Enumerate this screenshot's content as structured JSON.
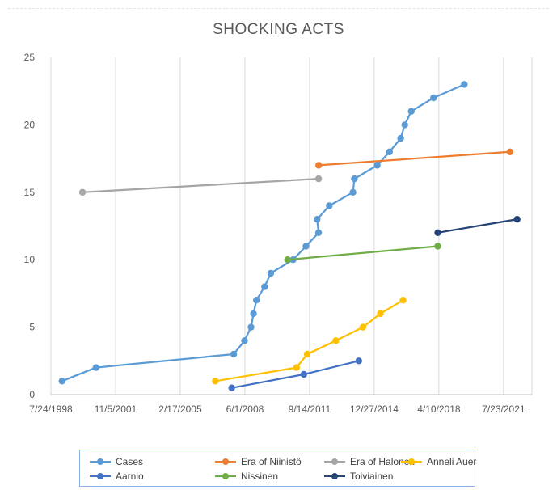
{
  "chart_data": {
    "type": "line",
    "title": "SHOCKING ACTS",
    "xlabel": "",
    "ylabel": "",
    "x_axis_type": "date",
    "xlim": [
      "1998-07-24",
      "2023-01-01"
    ],
    "ylim": [
      0,
      25
    ],
    "y_ticks": [
      0,
      5,
      10,
      15,
      20,
      25
    ],
    "x_ticks": [
      "1998-07-24",
      "2001-11-05",
      "2005-02-17",
      "2008-06-01",
      "2011-09-14",
      "2014-12-27",
      "2018-04-10",
      "2021-07-23"
    ],
    "x_tick_labels": [
      "7/24/1998",
      "11/5/2001",
      "2/17/2005",
      "6/1/2008",
      "9/14/2011",
      "12/27/2014",
      "4/10/2018",
      "7/23/2021"
    ],
    "grid": "vertical",
    "legend_position": "bottom",
    "series": [
      {
        "name": "Cases",
        "color": "#5b9bd5",
        "points": [
          [
            "1999-02-15",
            1
          ],
          [
            "2000-11-07",
            2
          ],
          [
            "2007-11-07",
            3
          ],
          [
            "2008-05-26",
            4
          ],
          [
            "2008-09-23",
            5
          ],
          [
            "2008-11-08",
            6
          ],
          [
            "2009-01-01",
            7
          ],
          [
            "2009-06-01",
            8
          ],
          [
            "2009-09-23",
            9
          ],
          [
            "2010-11-13",
            10
          ],
          [
            "2011-07-10",
            11
          ],
          [
            "2012-02-28",
            12
          ],
          [
            "2012-02-01",
            13
          ],
          [
            "2012-09-14",
            14
          ],
          [
            "2013-11-28",
            15
          ],
          [
            "2013-12-25",
            16
          ],
          [
            "2015-02-20",
            17
          ],
          [
            "2015-10-07",
            18
          ],
          [
            "2016-04-30",
            19
          ],
          [
            "2016-07-16",
            20
          ],
          [
            "2016-11-13",
            21
          ],
          [
            "2018-01-01",
            22
          ],
          [
            "2019-07-25",
            23
          ]
        ]
      },
      {
        "name": "Era of Niinistö",
        "color": "#ed7d31",
        "points": [
          [
            "2012-03-01",
            17
          ],
          [
            "2021-11-20",
            18
          ]
        ]
      },
      {
        "name": "Era of Halonen",
        "color": "#a5a5a5",
        "points": [
          [
            "2000-03-01",
            15
          ],
          [
            "2012-02-29",
            16
          ]
        ]
      },
      {
        "name": "Anneli Auer",
        "color": "#ffc000",
        "points": [
          [
            "2006-12-01",
            1
          ],
          [
            "2011-01-15",
            2
          ],
          [
            "2011-08-01",
            3
          ],
          [
            "2013-01-15",
            4
          ],
          [
            "2014-06-01",
            5
          ],
          [
            "2015-04-20",
            6
          ],
          [
            "2016-06-15",
            7
          ]
        ]
      },
      {
        "name": "Aarnio",
        "color": "#4472c4",
        "points": [
          [
            "2007-10-01",
            0.5
          ],
          [
            "2011-06-01",
            1.5
          ],
          [
            "2014-03-15",
            2.5
          ]
        ]
      },
      {
        "name": "Nissinen",
        "color": "#70ad47",
        "points": [
          [
            "2010-08-01",
            10
          ],
          [
            "2018-03-20",
            11
          ]
        ]
      },
      {
        "name": "Toiviainen",
        "color": "#264478",
        "points": [
          [
            "2018-03-20",
            12
          ],
          [
            "2022-04-01",
            13
          ]
        ]
      }
    ]
  }
}
